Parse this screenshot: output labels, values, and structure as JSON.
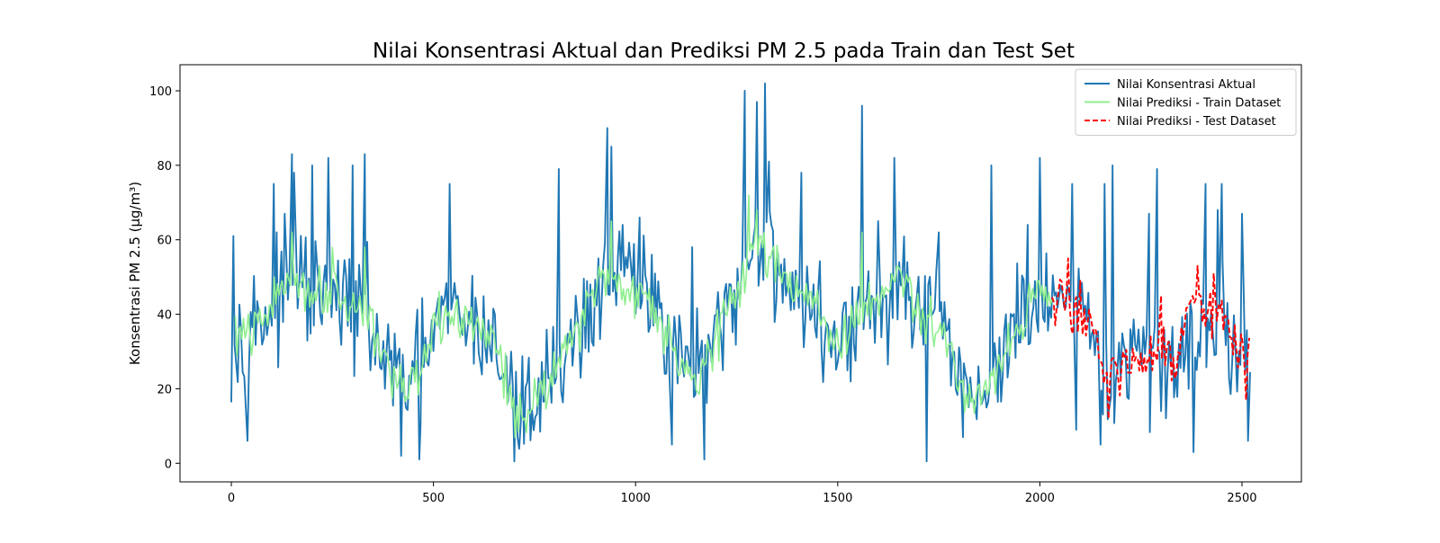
{
  "chart_data": {
    "type": "line",
    "title": "Nilai Konsentrasi Aktual dan Prediksi PM 2.5 pada Train dan Test Set",
    "xlabel": "",
    "ylabel": "Konsentrasi PM 2.5 (µg/m³)",
    "xlim": [
      -127,
      2647
    ],
    "ylim": [
      -5,
      107
    ],
    "xticks": [
      0,
      500,
      1000,
      1500,
      2000,
      2500
    ],
    "yticks": [
      0,
      20,
      40,
      60,
      80,
      100
    ],
    "grid": false,
    "legend_position": "top-right",
    "series": [
      {
        "name": "Nilai Konsentrasi Aktual",
        "color": "#1f77b4",
        "style": "solid",
        "x_range": [
          0,
          2520
        ],
        "anchors": [
          [
            0,
            30
          ],
          [
            30,
            36
          ],
          [
            60,
            38
          ],
          [
            100,
            42
          ],
          [
            150,
            50
          ],
          [
            200,
            44
          ],
          [
            250,
            44
          ],
          [
            300,
            42
          ],
          [
            340,
            38
          ],
          [
            380,
            27
          ],
          [
            420,
            22
          ],
          [
            460,
            24
          ],
          [
            500,
            35
          ],
          [
            540,
            40
          ],
          [
            580,
            38
          ],
          [
            620,
            36
          ],
          [
            660,
            30
          ],
          [
            700,
            14
          ],
          [
            740,
            16
          ],
          [
            780,
            22
          ],
          [
            820,
            28
          ],
          [
            860,
            36
          ],
          [
            900,
            44
          ],
          [
            940,
            52
          ],
          [
            980,
            50
          ],
          [
            1020,
            44
          ],
          [
            1060,
            40
          ],
          [
            1100,
            33
          ],
          [
            1140,
            24
          ],
          [
            1180,
            28
          ],
          [
            1220,
            35
          ],
          [
            1250,
            44
          ],
          [
            1280,
            58
          ],
          [
            1320,
            56
          ],
          [
            1360,
            52
          ],
          [
            1400,
            46
          ],
          [
            1440,
            40
          ],
          [
            1480,
            33
          ],
          [
            1520,
            33
          ],
          [
            1560,
            40
          ],
          [
            1600,
            42
          ],
          [
            1640,
            46
          ],
          [
            1680,
            44
          ],
          [
            1720,
            40
          ],
          [
            1760,
            36
          ],
          [
            1800,
            24
          ],
          [
            1840,
            18
          ],
          [
            1880,
            22
          ],
          [
            1920,
            32
          ],
          [
            1960,
            38
          ],
          [
            2000,
            43
          ],
          [
            2040,
            40
          ],
          [
            2080,
            40
          ],
          [
            2120,
            35
          ],
          [
            2160,
            22
          ],
          [
            2200,
            24
          ],
          [
            2240,
            28
          ],
          [
            2280,
            26
          ],
          [
            2320,
            28
          ],
          [
            2360,
            32
          ],
          [
            2400,
            40
          ],
          [
            2440,
            38
          ],
          [
            2480,
            34
          ],
          [
            2520,
            28
          ]
        ],
        "points_per_step": 4,
        "noise_amplitude": 14,
        "spikes": [
          [
            5,
            61
          ],
          [
            40,
            6
          ],
          [
            105,
            75
          ],
          [
            150,
            83
          ],
          [
            155,
            78
          ],
          [
            200,
            80
          ],
          [
            240,
            82
          ],
          [
            300,
            80
          ],
          [
            330,
            83
          ],
          [
            420,
            2
          ],
          [
            465,
            1
          ],
          [
            540,
            75
          ],
          [
            700,
            0.5
          ],
          [
            810,
            79
          ],
          [
            930,
            90
          ],
          [
            940,
            85
          ],
          [
            1010,
            66
          ],
          [
            1040,
            56
          ],
          [
            1090,
            5
          ],
          [
            1140,
            58
          ],
          [
            1170,
            1
          ],
          [
            1270,
            100
          ],
          [
            1300,
            97
          ],
          [
            1320,
            102
          ],
          [
            1330,
            81
          ],
          [
            1410,
            78
          ],
          [
            1560,
            96
          ],
          [
            1600,
            65
          ],
          [
            1640,
            82
          ],
          [
            1720,
            0.5
          ],
          [
            1750,
            62
          ],
          [
            1810,
            7
          ],
          [
            1880,
            80
          ],
          [
            1970,
            64
          ],
          [
            2000,
            82
          ],
          [
            2080,
            75
          ],
          [
            2090,
            9
          ],
          [
            2150,
            5
          ],
          [
            2160,
            75
          ],
          [
            2180,
            80
          ],
          [
            2270,
            67
          ],
          [
            2290,
            79
          ],
          [
            2300,
            14
          ],
          [
            2380,
            3
          ],
          [
            2410,
            75
          ],
          [
            2440,
            68
          ],
          [
            2450,
            75
          ],
          [
            2500,
            67
          ],
          [
            2515,
            6
          ]
        ]
      },
      {
        "name": "Nilai Prediksi - Train Dataset",
        "color": "#90ee90",
        "style": "solid",
        "x_range": [
          10,
          2030
        ],
        "anchors": [
          [
            10,
            35
          ],
          [
            50,
            34
          ],
          [
            100,
            42
          ],
          [
            150,
            52
          ],
          [
            200,
            45
          ],
          [
            250,
            48
          ],
          [
            300,
            42
          ],
          [
            340,
            40
          ],
          [
            380,
            28
          ],
          [
            420,
            20
          ],
          [
            460,
            20
          ],
          [
            500,
            36
          ],
          [
            540,
            40
          ],
          [
            580,
            38
          ],
          [
            620,
            36
          ],
          [
            660,
            30
          ],
          [
            700,
            14
          ],
          [
            740,
            14
          ],
          [
            780,
            22
          ],
          [
            820,
            30
          ],
          [
            860,
            38
          ],
          [
            900,
            46
          ],
          [
            940,
            52
          ],
          [
            980,
            46
          ],
          [
            1020,
            45
          ],
          [
            1060,
            40
          ],
          [
            1100,
            30
          ],
          [
            1140,
            22
          ],
          [
            1180,
            30
          ],
          [
            1220,
            38
          ],
          [
            1260,
            48
          ],
          [
            1300,
            60
          ],
          [
            1340,
            55
          ],
          [
            1380,
            50
          ],
          [
            1420,
            45
          ],
          [
            1460,
            38
          ],
          [
            1500,
            32
          ],
          [
            1540,
            37
          ],
          [
            1580,
            42
          ],
          [
            1620,
            48
          ],
          [
            1660,
            50
          ],
          [
            1700,
            40
          ],
          [
            1740,
            36
          ],
          [
            1780,
            32
          ],
          [
            1800,
            20
          ],
          [
            1840,
            18
          ],
          [
            1880,
            22
          ],
          [
            1920,
            32
          ],
          [
            1960,
            40
          ],
          [
            2000,
            45
          ],
          [
            2030,
            46
          ]
        ],
        "points_per_step": 4,
        "noise_amplitude": 6,
        "spikes": [
          [
            150,
            62
          ],
          [
            250,
            58
          ],
          [
            330,
            58
          ],
          [
            940,
            65
          ],
          [
            1280,
            72
          ],
          [
            1300,
            68
          ],
          [
            1560,
            62
          ]
        ]
      },
      {
        "name": "Nilai Prediksi - Test Dataset",
        "color": "#ff0000",
        "style": "dashed",
        "x_range": [
          2030,
          2520
        ],
        "anchors": [
          [
            2030,
            42
          ],
          [
            2060,
            44
          ],
          [
            2080,
            40
          ],
          [
            2100,
            38
          ],
          [
            2120,
            40
          ],
          [
            2140,
            34
          ],
          [
            2160,
            20
          ],
          [
            2180,
            26
          ],
          [
            2200,
            26
          ],
          [
            2220,
            24
          ],
          [
            2240,
            28
          ],
          [
            2260,
            24
          ],
          [
            2280,
            30
          ],
          [
            2300,
            28
          ],
          [
            2320,
            30
          ],
          [
            2340,
            26
          ],
          [
            2360,
            38
          ],
          [
            2380,
            40
          ],
          [
            2400,
            38
          ],
          [
            2420,
            42
          ],
          [
            2440,
            40
          ],
          [
            2460,
            36
          ],
          [
            2480,
            36
          ],
          [
            2500,
            30
          ],
          [
            2520,
            28
          ]
        ],
        "points_per_step": 4,
        "noise_amplitude": 7,
        "spikes": [
          [
            2070,
            55
          ],
          [
            2100,
            49
          ],
          [
            2170,
            12
          ],
          [
            2300,
            45
          ],
          [
            2390,
            53
          ],
          [
            2430,
            51
          ],
          [
            2510,
            17
          ]
        ]
      }
    ]
  }
}
